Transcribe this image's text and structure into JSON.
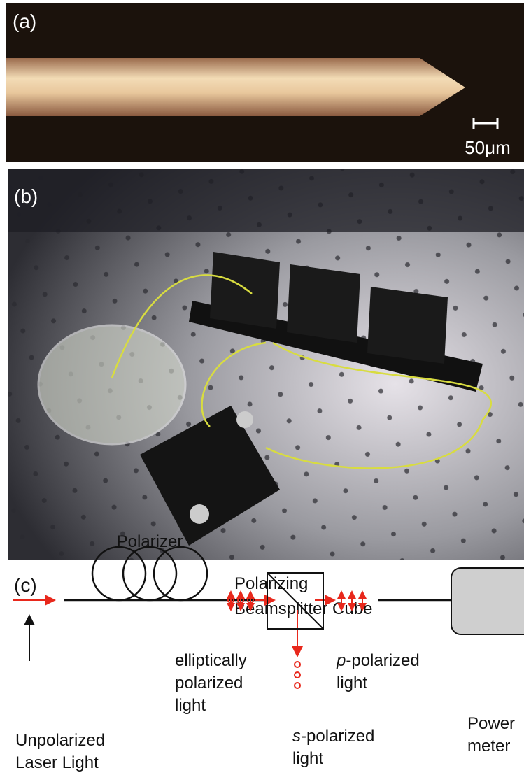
{
  "panel_a": {
    "label": "(a)",
    "scale_bar": "50μm"
  },
  "panel_b": {
    "label": "(b)"
  },
  "panel_c": {
    "label": "(c)",
    "polarizer": "Polarizer",
    "cube": [
      "Polarizing",
      "Beamsplitter Cube"
    ],
    "elliptical": [
      "elliptically",
      "polarized",
      "light"
    ],
    "p_light": {
      "italic": "p",
      "rest": "-polarized",
      "line2": "light"
    },
    "s_light": {
      "italic": "s",
      "rest": "-polarized",
      "line2": "light"
    },
    "source": [
      "Unpolarized",
      "Laser Light"
    ],
    "meter": [
      "Power",
      "meter"
    ]
  }
}
